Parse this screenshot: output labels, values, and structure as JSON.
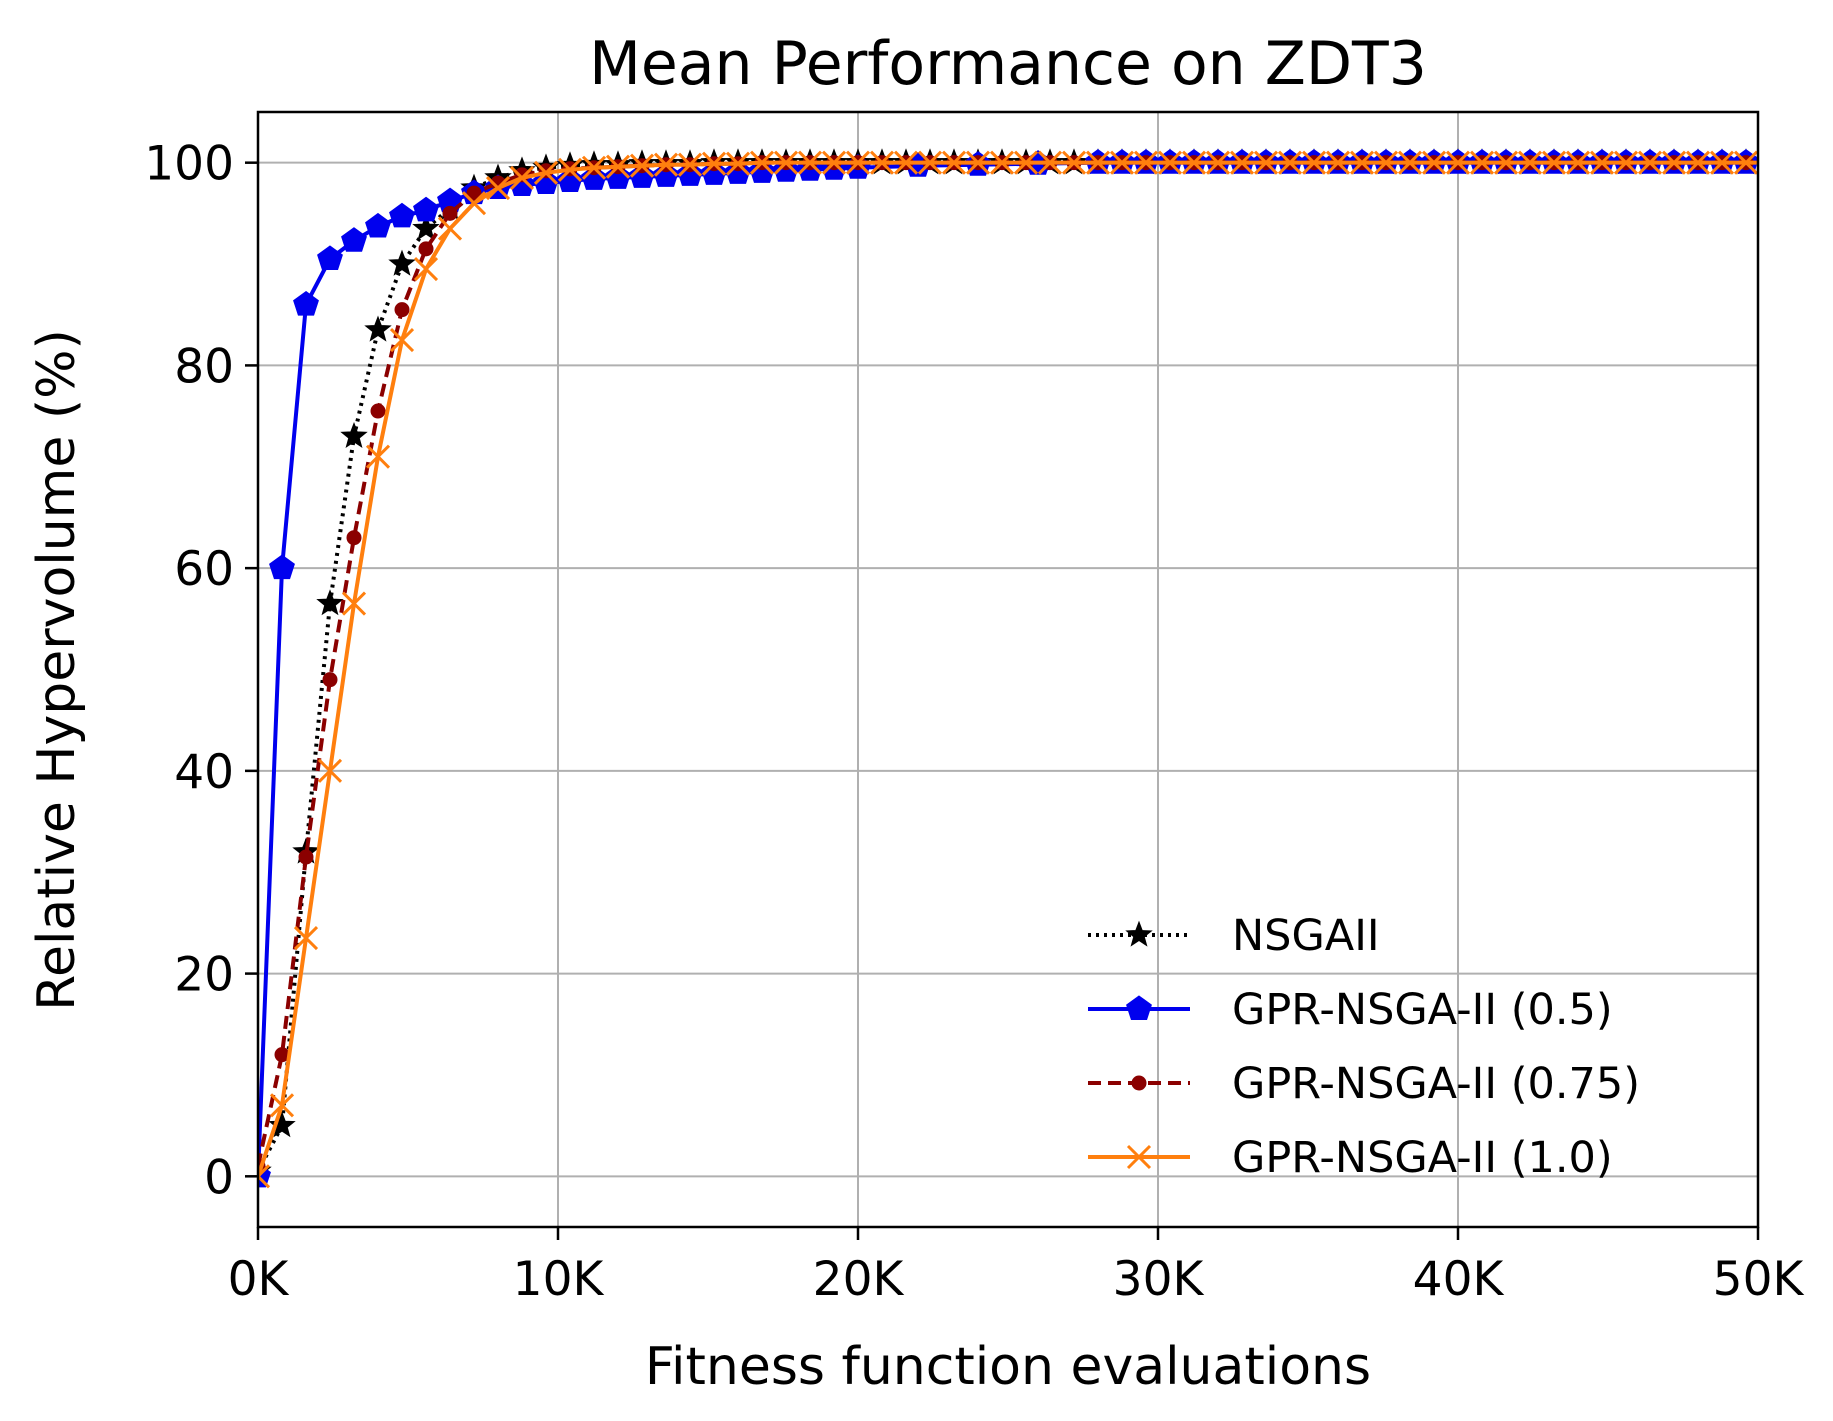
{
  "chart_data": {
    "type": "line",
    "title": "Mean Performance on ZDT3",
    "xlabel": "Fitness function evaluations",
    "ylabel": "Relative Hypervolume (%)",
    "xlim": [
      0,
      50000
    ],
    "ylim": [
      -5,
      105
    ],
    "xticks": [
      {
        "value": 0,
        "label": "0K"
      },
      {
        "value": 10000,
        "label": "10K"
      },
      {
        "value": 20000,
        "label": "20K"
      },
      {
        "value": 30000,
        "label": "30K"
      },
      {
        "value": 40000,
        "label": "40K"
      },
      {
        "value": 50000,
        "label": "50K"
      }
    ],
    "yticks": [
      {
        "value": 0,
        "label": "0"
      },
      {
        "value": 20,
        "label": "20"
      },
      {
        "value": 40,
        "label": "40"
      },
      {
        "value": 60,
        "label": "60"
      },
      {
        "value": 80,
        "label": "80"
      },
      {
        "value": 100,
        "label": "100"
      }
    ],
    "grid": true,
    "legend_position": "lower-right",
    "marker_interval": 800,
    "series": [
      {
        "name": "NSGAII",
        "color": "#000000",
        "line_style": "dotted",
        "marker": "star",
        "x": [
          0,
          800,
          1600,
          2400,
          3200,
          4000,
          4800,
          5600,
          6400,
          7200,
          8000,
          8800,
          9600,
          10400,
          11200,
          12000,
          12800,
          13600,
          14400,
          15200,
          16000,
          16800,
          17600,
          18400,
          19200,
          20000
        ],
        "y": [
          0.5,
          5,
          32,
          56.5,
          73,
          83.5,
          90,
          93.5,
          95.5,
          97.5,
          98.5,
          99.2,
          99.5,
          99.7,
          99.8,
          99.8,
          99.9,
          99.9,
          99.9,
          100,
          100,
          100,
          100,
          100,
          100,
          100
        ]
      },
      {
        "name": "GPR-NSGA-II (0.5)",
        "color": "#0000ee",
        "line_style": "solid",
        "marker": "pentagon",
        "x": [
          0,
          800,
          1600,
          2400,
          3200,
          4000,
          4800,
          5600,
          6400,
          7200,
          8000,
          8800,
          9600,
          10400,
          11200,
          12000,
          12800,
          13600,
          14400,
          15200,
          16000,
          16800,
          17600,
          18400,
          19200,
          20000,
          22000,
          24000,
          26000,
          28000
        ],
        "y": [
          0,
          60,
          86,
          90.5,
          92.3,
          93.7,
          94.7,
          95.3,
          96.2,
          97,
          97.5,
          97.8,
          98,
          98.2,
          98.4,
          98.5,
          98.6,
          98.7,
          98.8,
          98.9,
          99,
          99.1,
          99.2,
          99.3,
          99.4,
          99.5,
          99.7,
          99.8,
          99.9,
          100
        ]
      },
      {
        "name": "GPR-NSGA-II (0.75)",
        "color": "#8b0000",
        "line_style": "dashed",
        "marker": "circle",
        "x": [
          0,
          800,
          1600,
          2400,
          3200,
          4000,
          4800,
          5600,
          6400,
          7200,
          8000,
          8800,
          9600,
          10400,
          11200,
          12000,
          12800,
          13600,
          14400,
          15200,
          16000,
          16800,
          17600,
          18400,
          19200,
          20000
        ],
        "y": [
          1,
          12,
          31.5,
          49,
          63,
          75.5,
          85.5,
          91.5,
          95,
          97,
          98,
          98.8,
          99.2,
          99.4,
          99.5,
          99.6,
          99.7,
          99.8,
          99.8,
          99.9,
          99.9,
          100,
          100,
          100,
          100,
          100
        ]
      },
      {
        "name": "GPR-NSGA-II (1.0)",
        "color": "#ff7f0e",
        "line_style": "solid",
        "marker": "x",
        "x": [
          0,
          800,
          1600,
          2400,
          3200,
          4000,
          4800,
          5600,
          6400,
          7200,
          8000,
          8800,
          9600,
          10400,
          11200,
          12000,
          12800,
          13600,
          14400,
          15200,
          16000,
          16800,
          17600,
          18400,
          19200,
          20000
        ],
        "y": [
          0,
          7,
          23.5,
          40,
          56.5,
          71,
          82.5,
          89.5,
          93.5,
          96,
          97.5,
          98.5,
          99,
          99.3,
          99.5,
          99.6,
          99.7,
          99.8,
          99.8,
          99.9,
          99.9,
          100,
          100,
          100,
          100,
          100
        ]
      }
    ]
  }
}
